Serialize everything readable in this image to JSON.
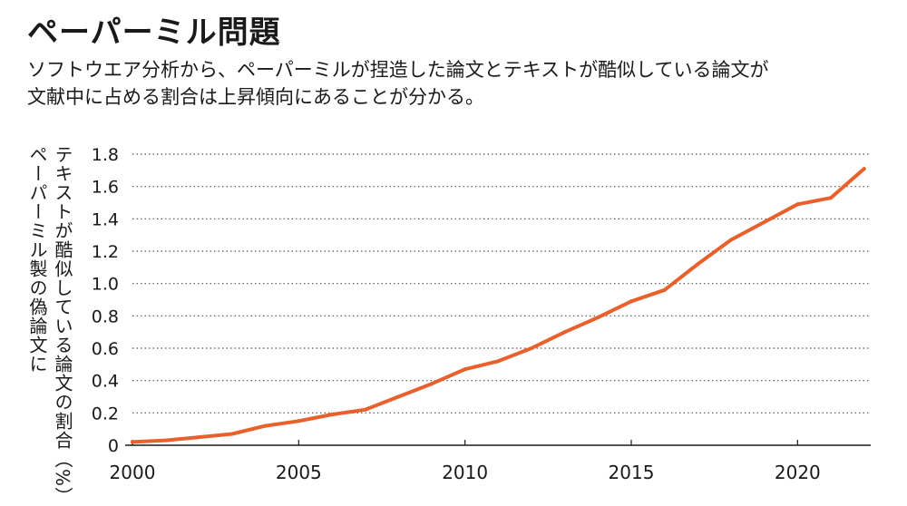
{
  "header": {
    "title": "ペーパーミル問題",
    "subtitle_line1": "ソフトウエア分析から、ペーパーミルが捏造した論文とテキストが酷似している論文が",
    "subtitle_line2": "文献中に占める割合は上昇傾向にあることが分かる。"
  },
  "colors": {
    "line": "#e8612c",
    "text": "#1a1a1a",
    "grid": "#555555"
  },
  "chart_data": {
    "type": "line",
    "ylabel_line1": "テキストが酷似している論文の割合（%）",
    "ylabel_line2": "ペーパーミル製の偽論文に",
    "xlim": [
      2000,
      2022.2
    ],
    "ylim": [
      0,
      1.8
    ],
    "x_ticks": [
      2000,
      2005,
      2010,
      2015,
      2020
    ],
    "y_ticks": [
      "0",
      "0.2",
      "0.4",
      "0.6",
      "0.8",
      "1.0",
      "1.2",
      "1.4",
      "1.6",
      "1.8"
    ],
    "grid": "horizontal dotted",
    "x": [
      2000,
      2001,
      2002,
      2003,
      2004,
      2005,
      2006,
      2007,
      2008,
      2009,
      2010,
      2011,
      2012,
      2013,
      2014,
      2015,
      2016,
      2017,
      2018,
      2019,
      2020,
      2021,
      2022
    ],
    "y": [
      0.02,
      0.03,
      0.05,
      0.07,
      0.12,
      0.15,
      0.19,
      0.22,
      0.3,
      0.38,
      0.47,
      0.52,
      0.6,
      0.7,
      0.79,
      0.89,
      0.96,
      1.12,
      1.27,
      1.38,
      1.49,
      1.53,
      1.71
    ]
  }
}
